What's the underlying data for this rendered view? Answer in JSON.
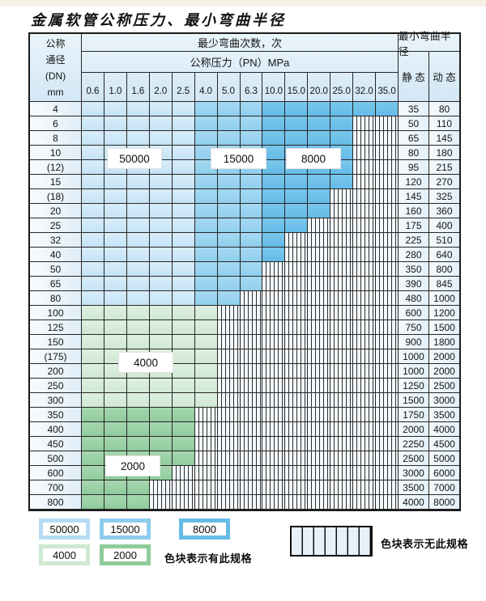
{
  "page": {
    "title": "金属软管公称压力、最小弯曲半径"
  },
  "table": {
    "header": {
      "dn_lines": [
        "公称",
        "通径",
        "(DN)",
        "mm"
      ],
      "cycles_label": "最少弯曲次数，次",
      "pressure_label": "公称压力（PN）MPa",
      "radius_label": "最小弯曲半径",
      "static_label": "静 态",
      "dynamic_label": "动 态",
      "pressures": [
        "0.6",
        "1.0",
        "1.6",
        "2.0",
        "2.5",
        "4.0",
        "5.0",
        "6.3",
        "10.0",
        "15.0",
        "20.0",
        "25.0",
        "32.0",
        "35.0"
      ]
    },
    "categories": {
      "b1": {
        "cycles": "50000",
        "color": "#c9e5f7"
      },
      "b2": {
        "cycles": "15000",
        "color": "#97d1ef"
      },
      "b3": {
        "cycles": "8000",
        "color": "#6fc0e9"
      },
      "g1": {
        "cycles": "4000",
        "color": "#d5ebd8"
      },
      "g2": {
        "cycles": "2000",
        "color": "#9bd0a5"
      },
      "h": {
        "meaning": "无此规格"
      }
    },
    "rows": [
      {
        "dn": "4",
        "bands": [
          [
            "b1",
            5
          ],
          [
            "b2",
            3
          ],
          [
            "b3",
            6
          ]
        ],
        "static": "35",
        "dynamic": "80"
      },
      {
        "dn": "6",
        "bands": [
          [
            "b1",
            5
          ],
          [
            "b2",
            3
          ],
          [
            "b3",
            4
          ],
          [
            "h",
            2
          ]
        ],
        "static": "50",
        "dynamic": "110"
      },
      {
        "dn": "8",
        "bands": [
          [
            "b1",
            5
          ],
          [
            "b2",
            3
          ],
          [
            "b3",
            4
          ],
          [
            "h",
            2
          ]
        ],
        "static": "65",
        "dynamic": "145"
      },
      {
        "dn": "10",
        "bands": [
          [
            "b1",
            5
          ],
          [
            "b2",
            3
          ],
          [
            "b3",
            4
          ],
          [
            "h",
            2
          ]
        ],
        "static": "80",
        "dynamic": "180"
      },
      {
        "dn": "(12)",
        "bands": [
          [
            "b1",
            5
          ],
          [
            "b2",
            3
          ],
          [
            "b3",
            4
          ],
          [
            "h",
            2
          ]
        ],
        "static": "95",
        "dynamic": "215"
      },
      {
        "dn": "15",
        "bands": [
          [
            "b1",
            5
          ],
          [
            "b2",
            3
          ],
          [
            "b3",
            4
          ],
          [
            "h",
            2
          ]
        ],
        "static": "120",
        "dynamic": "270"
      },
      {
        "dn": "(18)",
        "bands": [
          [
            "b1",
            5
          ],
          [
            "b2",
            3
          ],
          [
            "b3",
            3
          ],
          [
            "h",
            3
          ]
        ],
        "static": "145",
        "dynamic": "325"
      },
      {
        "dn": "20",
        "bands": [
          [
            "b1",
            5
          ],
          [
            "b2",
            3
          ],
          [
            "b3",
            3
          ],
          [
            "h",
            3
          ]
        ],
        "static": "160",
        "dynamic": "360"
      },
      {
        "dn": "25",
        "bands": [
          [
            "b1",
            5
          ],
          [
            "b2",
            3
          ],
          [
            "b3",
            2
          ],
          [
            "h",
            4
          ]
        ],
        "static": "175",
        "dynamic": "400"
      },
      {
        "dn": "32",
        "bands": [
          [
            "b1",
            5
          ],
          [
            "b2",
            3
          ],
          [
            "b3",
            1
          ],
          [
            "h",
            5
          ]
        ],
        "static": "225",
        "dynamic": "510"
      },
      {
        "dn": "40",
        "bands": [
          [
            "b1",
            5
          ],
          [
            "b2",
            3
          ],
          [
            "b3",
            1
          ],
          [
            "h",
            5
          ]
        ],
        "static": "280",
        "dynamic": "640"
      },
      {
        "dn": "50",
        "bands": [
          [
            "b1",
            5
          ],
          [
            "b2",
            3
          ],
          [
            "h",
            6
          ]
        ],
        "static": "350",
        "dynamic": "800"
      },
      {
        "dn": "65",
        "bands": [
          [
            "b1",
            5
          ],
          [
            "b2",
            3
          ],
          [
            "h",
            6
          ]
        ],
        "static": "390",
        "dynamic": "845"
      },
      {
        "dn": "80",
        "bands": [
          [
            "b1",
            5
          ],
          [
            "b2",
            2
          ],
          [
            "h",
            7
          ]
        ],
        "static": "480",
        "dynamic": "1000"
      },
      {
        "dn": "100",
        "bands": [
          [
            "g1",
            6
          ],
          [
            "h",
            8
          ]
        ],
        "static": "600",
        "dynamic": "1200"
      },
      {
        "dn": "125",
        "bands": [
          [
            "g1",
            6
          ],
          [
            "h",
            8
          ]
        ],
        "static": "750",
        "dynamic": "1500"
      },
      {
        "dn": "150",
        "bands": [
          [
            "g1",
            6
          ],
          [
            "h",
            8
          ]
        ],
        "static": "900",
        "dynamic": "1800"
      },
      {
        "dn": "(175)",
        "bands": [
          [
            "g1",
            6
          ],
          [
            "h",
            8
          ]
        ],
        "static": "1000",
        "dynamic": "2000"
      },
      {
        "dn": "200",
        "bands": [
          [
            "g1",
            6
          ],
          [
            "h",
            8
          ]
        ],
        "static": "1000",
        "dynamic": "2000"
      },
      {
        "dn": "250",
        "bands": [
          [
            "g1",
            6
          ],
          [
            "h",
            8
          ]
        ],
        "static": "1250",
        "dynamic": "2500"
      },
      {
        "dn": "300",
        "bands": [
          [
            "g1",
            6
          ],
          [
            "h",
            8
          ]
        ],
        "static": "1500",
        "dynamic": "3000"
      },
      {
        "dn": "350",
        "bands": [
          [
            "g2",
            5
          ],
          [
            "h",
            9
          ]
        ],
        "static": "1750",
        "dynamic": "3500"
      },
      {
        "dn": "400",
        "bands": [
          [
            "g2",
            5
          ],
          [
            "h",
            9
          ]
        ],
        "static": "2000",
        "dynamic": "4000"
      },
      {
        "dn": "450",
        "bands": [
          [
            "g2",
            5
          ],
          [
            "h",
            9
          ]
        ],
        "static": "2250",
        "dynamic": "4500"
      },
      {
        "dn": "500",
        "bands": [
          [
            "g2",
            5
          ],
          [
            "h",
            9
          ]
        ],
        "static": "2500",
        "dynamic": "5000"
      },
      {
        "dn": "600",
        "bands": [
          [
            "g2",
            4
          ],
          [
            "h",
            10
          ]
        ],
        "static": "3000",
        "dynamic": "6000"
      },
      {
        "dn": "700",
        "bands": [
          [
            "g2",
            3
          ],
          [
            "h",
            11
          ]
        ],
        "static": "3500",
        "dynamic": "7000"
      },
      {
        "dn": "800",
        "bands": [
          [
            "g2",
            3
          ],
          [
            "h",
            11
          ]
        ],
        "static": "4000",
        "dynamic": "8000"
      }
    ],
    "overlay_labels": [
      {
        "text": "50000"
      },
      {
        "text": "15000"
      },
      {
        "text": "8000"
      },
      {
        "text": "4000"
      },
      {
        "text": "2000"
      }
    ]
  },
  "legend": {
    "swatches": [
      {
        "label": "50000",
        "color": "#b5dcf4"
      },
      {
        "label": "15000",
        "color": "#8ecbed"
      },
      {
        "label": "8000",
        "color": "#66bce7"
      },
      {
        "label": "4000",
        "color": "#cfe8d2"
      },
      {
        "label": "2000",
        "color": "#8fcb9b"
      }
    ],
    "has_spec_text": "色块表示有此规格",
    "no_spec_text": "色块表示无此规格"
  }
}
